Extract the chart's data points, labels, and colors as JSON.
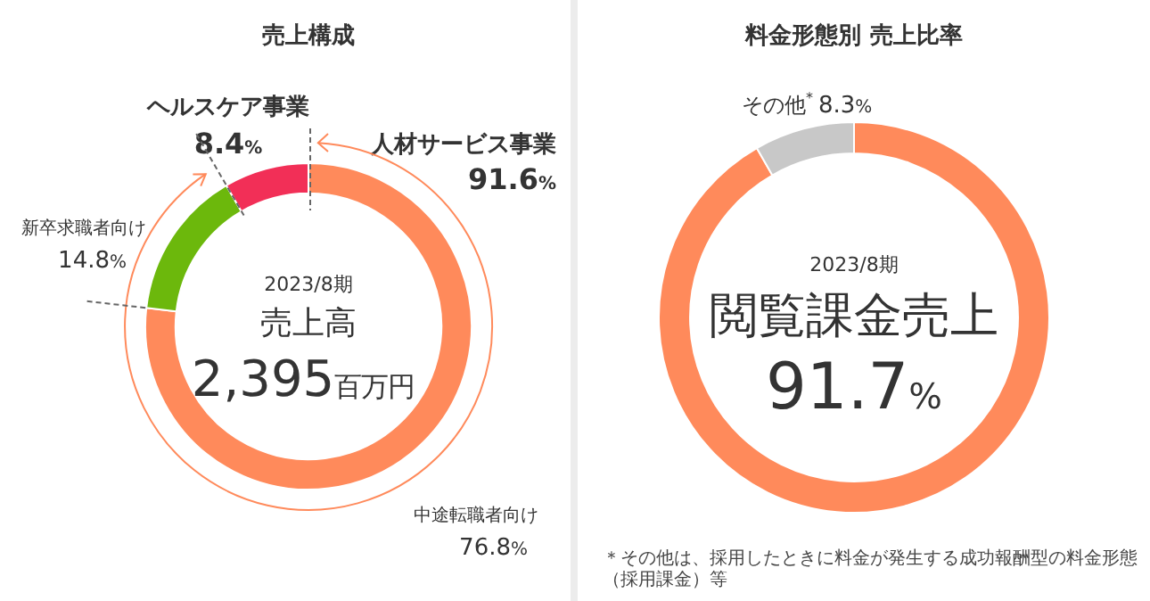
{
  "chart_data": [
    {
      "type": "donut",
      "title": "売上構成",
      "categories": [
        "中途転職者向け",
        "新卒求職者向け",
        "ヘルスケア事業"
      ],
      "values": [
        76.8,
        14.8,
        8.4
      ],
      "colors": [
        "#ff8a5b",
        "#6cb80c",
        "#f22f57"
      ],
      "value_labels": [
        "76.8%",
        "14.8%",
        "8.4%"
      ],
      "annotations": [
        "人材サービス事業",
        "91.6%",
        "2023/8期",
        "売上高",
        "2,395百万円"
      ]
    },
    {
      "type": "donut",
      "title": "料金形態別 売上比率",
      "categories": [
        "閲覧課金売上",
        "その他$^{*}$"
      ],
      "values": [
        91.7,
        8.3
      ],
      "colors": [
        "#ff8a5b",
        "#c8c8c8"
      ],
      "value_labels": [
        "91.7%",
        "8.3%"
      ],
      "annotations": [
        "2023/8期",
        "＊その他は、採用したときに料金が発生する成功報酬型の料金形態（採用課金）等"
      ]
    }
  ]
}
